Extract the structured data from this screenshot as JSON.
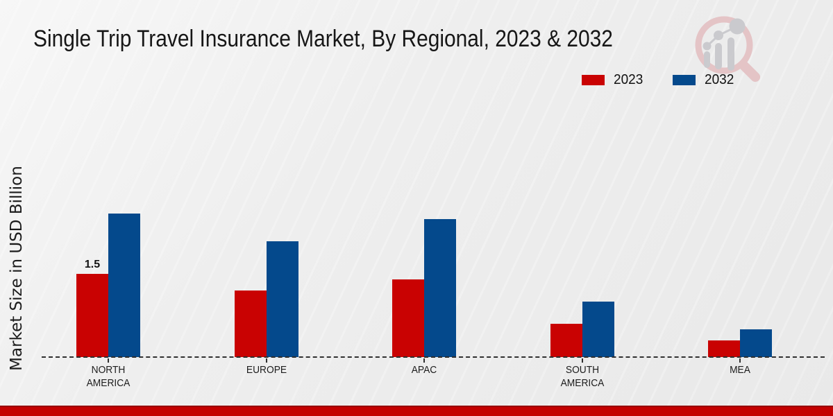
{
  "title": "Single Trip Travel Insurance Market, By Regional, 2023 & 2032",
  "ylabel": "Market Size in USD Billion",
  "branding": {
    "logo": "magnifier-growth-chart-logo"
  },
  "footer": {
    "accent_color": "#c40000"
  },
  "chart_data": {
    "type": "bar",
    "title": "Single Trip Travel Insurance Market, By Regional, 2023 & 2032",
    "xlabel": "",
    "ylabel": "Market Size in USD Billion",
    "categories": [
      "NORTH AMERICA",
      "EUROPE",
      "APAC",
      "SOUTH AMERICA",
      "MEA"
    ],
    "series": [
      {
        "name": "2023",
        "color": "#c90202",
        "values": [
          1.5,
          1.2,
          1.4,
          0.6,
          0.3
        ],
        "bar_labels": [
          "1.5",
          "",
          "",
          "",
          ""
        ]
      },
      {
        "name": "2032",
        "color": "#04498c",
        "values": [
          2.6,
          2.1,
          2.5,
          1.0,
          0.5
        ],
        "bar_labels": [
          "",
          "",
          "",
          "",
          ""
        ]
      }
    ],
    "ylim": [
      0,
      3
    ],
    "grid": false,
    "baseline_style": "dashed",
    "legend_position": "top-right",
    "background_color": "#ececec"
  }
}
